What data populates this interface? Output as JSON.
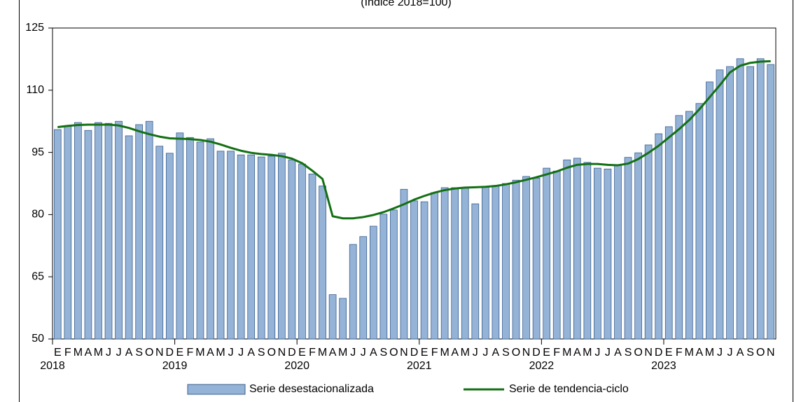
{
  "chart_data": {
    "type": "bar-line",
    "subtitle": "(Índice 2018=100)",
    "categories": [
      "E",
      "F",
      "M",
      "A",
      "M",
      "J",
      "J",
      "A",
      "S",
      "O",
      "N",
      "D",
      "E",
      "F",
      "M",
      "A",
      "M",
      "J",
      "J",
      "A",
      "S",
      "O",
      "N",
      "D",
      "E",
      "F",
      "M",
      "A",
      "M",
      "J",
      "J",
      "A",
      "S",
      "O",
      "N",
      "D",
      "E",
      "F",
      "M",
      "A",
      "M",
      "J",
      "J",
      "A",
      "S",
      "O",
      "N",
      "D",
      "E",
      "F",
      "M",
      "A",
      "M",
      "J",
      "J",
      "A",
      "S",
      "O",
      "N",
      "D",
      "E",
      "F",
      "M",
      "A",
      "M",
      "J",
      "J",
      "A",
      "S",
      "O",
      "N"
    ],
    "years": [
      "2018",
      "2019",
      "2020",
      "2021",
      "2022",
      "2023"
    ],
    "series": [
      {
        "name": "Serie desestacionalizada",
        "type": "bar",
        "color": "#95b3d7",
        "values": [
          100.5,
          101.4,
          102.2,
          100.3,
          102.2,
          102,
          102.5,
          99,
          101.7,
          102.5,
          96.5,
          94.8,
          99.7,
          98.6,
          97.5,
          98.3,
          95.3,
          95.3,
          94.4,
          94.4,
          93.9,
          94.1,
          94.8,
          93.2,
          92.2,
          89.8,
          86.9,
          60.7,
          59.8,
          72.8,
          74.7,
          77.2,
          80.1,
          81.1,
          86.1,
          83.3,
          83.1,
          85.3,
          86.5,
          86.5,
          86.5,
          82.6,
          86.8,
          87,
          87.5,
          88.3,
          89.2,
          88.8,
          91.2,
          90.5,
          93.2,
          93.6,
          92.6,
          91.2,
          91,
          91.9,
          93.8,
          94.9,
          96.8,
          99.5,
          101.2,
          103.9,
          104.9,
          106.8,
          112,
          114.9,
          115.7,
          117.6,
          115.7,
          117.6,
          116.2
        ]
      },
      {
        "name": "Serie de tendencia-ciclo",
        "type": "line",
        "color": "#137013",
        "values": [
          101.1,
          101.4,
          101.6,
          101.7,
          101.7,
          101.7,
          101.5,
          100.9,
          100.1,
          99.4,
          98.8,
          98.4,
          98.3,
          98.2,
          98.0,
          97.6,
          96.9,
          96.1,
          95.4,
          94.9,
          94.6,
          94.4,
          94.1,
          93.5,
          92.4,
          90.6,
          88.6,
          79.6,
          79.1,
          79.1,
          79.4,
          79.9,
          80.6,
          81.5,
          82.5,
          83.6,
          84.5,
          85.3,
          85.9,
          86.3,
          86.5,
          86.6,
          86.7,
          86.9,
          87.3,
          87.8,
          88.4,
          89.0,
          89.7,
          90.4,
          91.3,
          92.0,
          92.2,
          92.2,
          92.0,
          91.9,
          92.3,
          93.4,
          94.9,
          96.6,
          98.6,
          100.6,
          102.8,
          105.4,
          108.3,
          111.2,
          114.3,
          115.9,
          116.6,
          116.9,
          117.0
        ]
      }
    ],
    "ylim": [
      50,
      125
    ],
    "yticks": [
      50,
      65,
      80,
      95,
      110,
      125
    ],
    "legend": "bottom"
  }
}
